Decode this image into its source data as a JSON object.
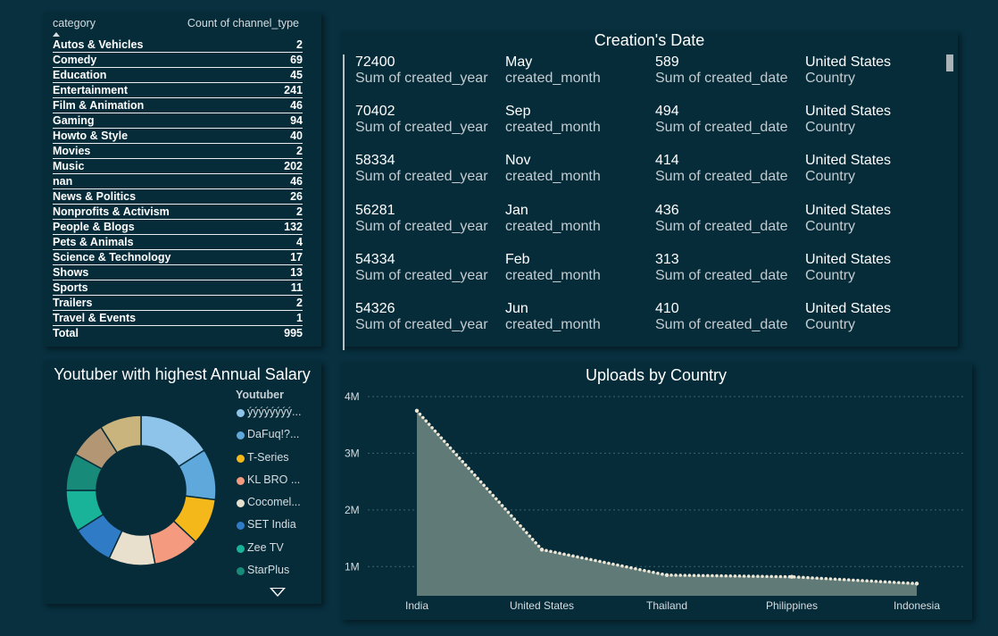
{
  "category_table": {
    "header_category": "category",
    "header_count": "Count of channel_type",
    "rows": [
      {
        "name": "Autos & Vehicles",
        "count": "2"
      },
      {
        "name": "Comedy",
        "count": "69"
      },
      {
        "name": "Education",
        "count": "45"
      },
      {
        "name": "Entertainment",
        "count": "241"
      },
      {
        "name": "Film & Animation",
        "count": "46"
      },
      {
        "name": "Gaming",
        "count": "94"
      },
      {
        "name": "Howto & Style",
        "count": "40"
      },
      {
        "name": "Movies",
        "count": "2"
      },
      {
        "name": "Music",
        "count": "202"
      },
      {
        "name": "nan",
        "count": "46"
      },
      {
        "name": "News & Politics",
        "count": "26"
      },
      {
        "name": "Nonprofits & Activism",
        "count": "2"
      },
      {
        "name": "People & Blogs",
        "count": "132"
      },
      {
        "name": "Pets & Animals",
        "count": "4"
      },
      {
        "name": "Science & Technology",
        "count": "17"
      },
      {
        "name": "Shows",
        "count": "13"
      },
      {
        "name": "Sports",
        "count": "11"
      },
      {
        "name": "Trailers",
        "count": "2"
      },
      {
        "name": "Travel & Events",
        "count": "1"
      }
    ],
    "total_label": "Total",
    "total_value": "995"
  },
  "creation_card": {
    "title": "Creation's Date",
    "labels": {
      "year": "Sum of created_year",
      "month": "created_month",
      "day": "Sum of created_date",
      "country": "Country"
    },
    "rows": [
      {
        "year": "72400",
        "month": "May",
        "day": "589",
        "country": "United States"
      },
      {
        "year": "70402",
        "month": "Sep",
        "day": "494",
        "country": "United States"
      },
      {
        "year": "58334",
        "month": "Nov",
        "day": "414",
        "country": "United States"
      },
      {
        "year": "56281",
        "month": "Jan",
        "day": "436",
        "country": "United States"
      },
      {
        "year": "54334",
        "month": "Feb",
        "day": "313",
        "country": "United States"
      },
      {
        "year": "54326",
        "month": "Jun",
        "day": "410",
        "country": "United States"
      }
    ]
  },
  "donut": {
    "title": "Youtuber with highest Annual Salary",
    "legend_title": "Youtuber",
    "legend": [
      {
        "label": "ýýýýýýýý...",
        "color": "#8ec3ea"
      },
      {
        "label": "DaFuq!?...",
        "color": "#5fa8dc"
      },
      {
        "label": "T-Series",
        "color": "#f4b81a"
      },
      {
        "label": "KL BRO ...",
        "color": "#f49a7e"
      },
      {
        "label": "Cocomel...",
        "color": "#e8e0cc"
      },
      {
        "label": "SET India",
        "color": "#2f7bc6"
      },
      {
        "label": "Zee TV",
        "color": "#19b39a"
      },
      {
        "label": "StarPlus",
        "color": "#178a7a"
      }
    ],
    "slices": [
      {
        "color": "#8ec3ea",
        "value": 16
      },
      {
        "color": "#5fa8dc",
        "value": 11
      },
      {
        "color": "#f4b81a",
        "value": 10
      },
      {
        "color": "#f49a7e",
        "value": 10
      },
      {
        "color": "#e8e0cc",
        "value": 10
      },
      {
        "color": "#2f7bc6",
        "value": 9
      },
      {
        "color": "#19b39a",
        "value": 9
      },
      {
        "color": "#178a7a",
        "value": 8
      },
      {
        "color": "#b39775",
        "value": 8
      },
      {
        "color": "#c8b47c",
        "value": 9
      }
    ]
  },
  "chart_data": {
    "type": "area",
    "title": "Uploads by Country",
    "categories": [
      "India",
      "United States",
      "Thailand",
      "Philippines",
      "Indonesia"
    ],
    "series": [
      {
        "values": [
          3750000,
          1300000,
          850000,
          820000,
          700000
        ],
        "color": "#607a78"
      }
    ],
    "yticks": [
      "1M",
      "2M",
      "3M",
      "4M"
    ],
    "ytick_values": [
      1000000,
      2000000,
      3000000,
      4000000
    ],
    "ylim": [
      500000,
      4000000
    ],
    "grid": true
  }
}
